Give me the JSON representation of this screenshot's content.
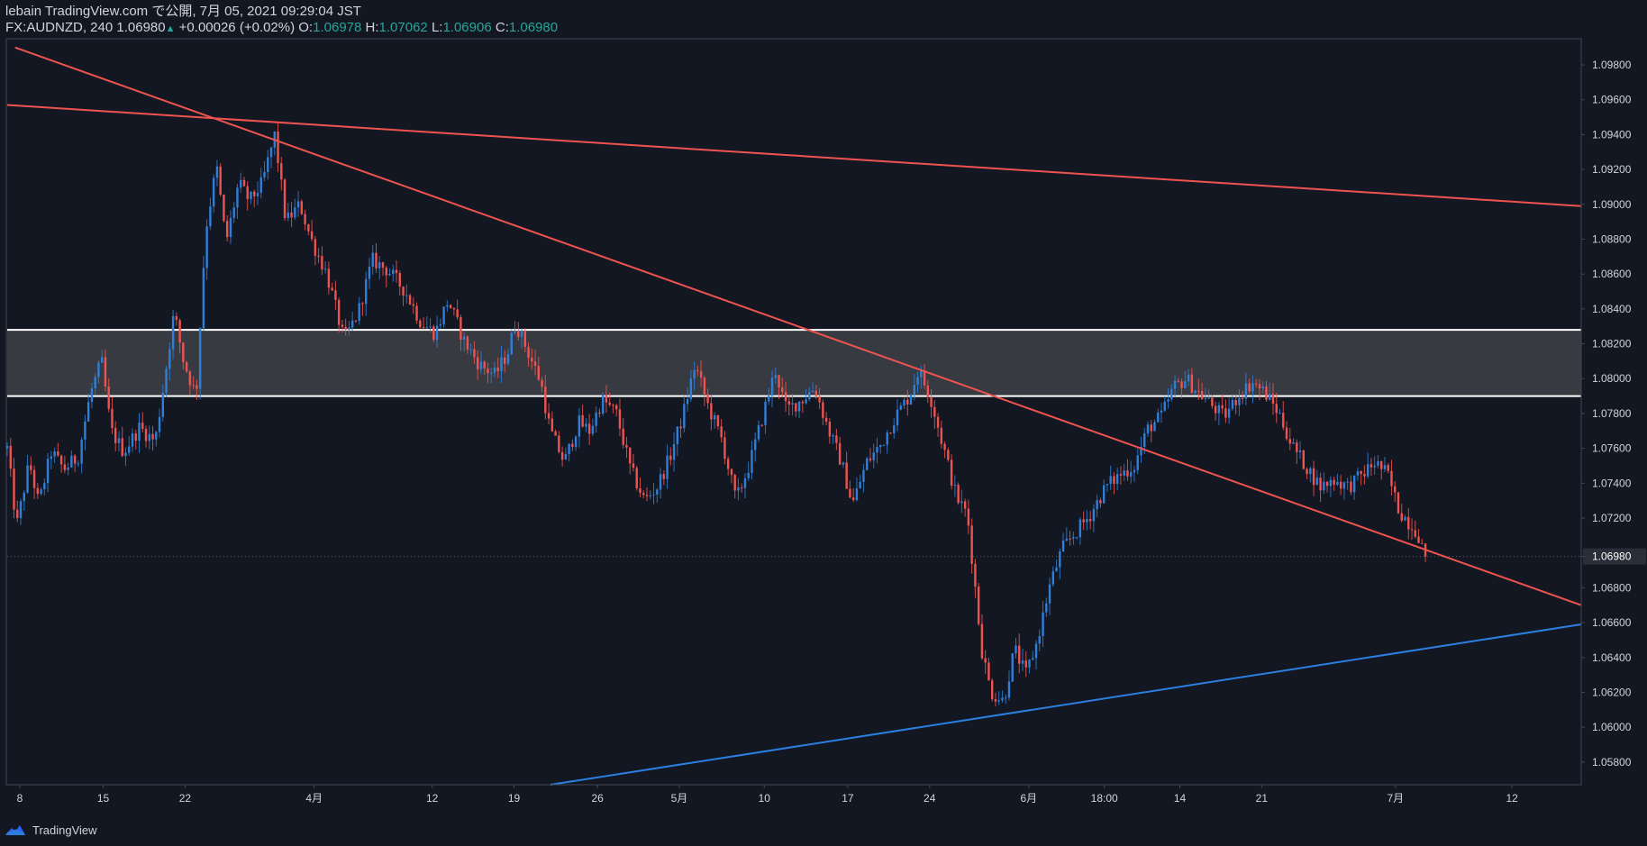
{
  "header": {
    "publish_line": "lebain TradingView.com で公開, 7月 05, 2021 09:29:04 JST",
    "symbol": "FX:AUDNZD, 240",
    "last": "1.06980",
    "change_arrow": "▲",
    "change": "+0.00026 (+0.02%)",
    "o_label": "O:",
    "o_value": "1.06978",
    "h_label": "H:",
    "h_value": "1.07062",
    "l_label": "L:",
    "l_value": "1.06906",
    "c_label": "C:",
    "c_value": "1.06980"
  },
  "footer": {
    "brand": "TradingView",
    "logo_icon": "tradingview-cloud-icon"
  },
  "colors": {
    "background": "#131722",
    "up": "#2f7fd8",
    "down": "#ef5350",
    "trend_red": "#ef5350",
    "trend_blue": "#2b7fe0",
    "zone_fill": "#3a3c44",
    "zone_line": "#ffffff",
    "grid_text": "#d1d4dc",
    "axis_line": "#434651",
    "value_text": "#26a69a"
  },
  "chart_data": {
    "type": "candlestick",
    "symbol": "FX:AUDNZD",
    "interval": "240",
    "y_range": [
      1.0567,
      1.0995
    ],
    "y_ticks": [
      "1.09800",
      "1.09600",
      "1.09400",
      "1.09200",
      "1.09000",
      "1.08800",
      "1.08600",
      "1.08400",
      "1.08200",
      "1.08000",
      "1.07800",
      "1.07600",
      "1.07400",
      "1.07200",
      "1.06980",
      "1.06800",
      "1.06600",
      "1.06400",
      "1.06200",
      "1.06000",
      "1.05800"
    ],
    "last_price_label": "1.06980",
    "last_price": 1.0698,
    "x_range_index": [
      0,
      100
    ],
    "x_ticks": [
      {
        "label": "8",
        "index": 0.8
      },
      {
        "label": "15",
        "index": 6.1
      },
      {
        "label": "22",
        "index": 11.3
      },
      {
        "label": "4月",
        "index": 19.5
      },
      {
        "label": "12",
        "index": 27.0
      },
      {
        "label": "19",
        "index": 32.2
      },
      {
        "label": "26",
        "index": 37.5
      },
      {
        "label": "5月",
        "index": 42.7
      },
      {
        "label": "10",
        "index": 48.1
      },
      {
        "label": "17",
        "index": 53.4
      },
      {
        "label": "24",
        "index": 58.6
      },
      {
        "label": "6月",
        "index": 64.9
      },
      {
        "label": "18:00",
        "index": 69.7
      },
      {
        "label": "14",
        "index": 74.5
      },
      {
        "label": "21",
        "index": 79.7
      },
      {
        "label": "7月",
        "index": 88.2
      },
      {
        "label": "12",
        "index": 95.6
      }
    ],
    "resistance_zone": {
      "top": 1.0828,
      "bottom": 1.079
    },
    "trendlines": [
      {
        "name": "descending-upper",
        "color": "red",
        "points": [
          [
            0,
            1.0957
          ],
          [
            100,
            1.0899
          ]
        ]
      },
      {
        "name": "descending-main",
        "color": "red",
        "points": [
          [
            0.5,
            1.099
          ],
          [
            100,
            1.067
          ]
        ]
      },
      {
        "name": "ascending-support",
        "color": "blue",
        "points": [
          [
            34.5,
            1.0567
          ],
          [
            100,
            1.0659
          ]
        ]
      }
    ],
    "price_path": [
      [
        0,
        1.076
      ],
      [
        0.6,
        1.0715
      ],
      [
        1.4,
        1.0752
      ],
      [
        2.0,
        1.0728
      ],
      [
        2.8,
        1.0758
      ],
      [
        3.6,
        1.0748
      ],
      [
        4.5,
        1.0755
      ],
      [
        5.3,
        1.0792
      ],
      [
        6.0,
        1.081
      ],
      [
        6.6,
        1.077
      ],
      [
        7.4,
        1.0758
      ],
      [
        8.4,
        1.0772
      ],
      [
        9.4,
        1.0764
      ],
      [
        10.0,
        1.08
      ],
      [
        10.6,
        1.0838
      ],
      [
        11.2,
        1.081
      ],
      [
        12.0,
        1.079
      ],
      [
        12.6,
        1.0885
      ],
      [
        13.3,
        1.0922
      ],
      [
        13.9,
        1.0878
      ],
      [
        14.7,
        1.0912
      ],
      [
        15.4,
        1.0902
      ],
      [
        16.2,
        1.0912
      ],
      [
        17.0,
        1.094
      ],
      [
        17.7,
        1.089
      ],
      [
        18.6,
        1.09
      ],
      [
        19.3,
        1.088
      ],
      [
        20.3,
        1.086
      ],
      [
        21.4,
        1.0822
      ],
      [
        22.3,
        1.0838
      ],
      [
        23.2,
        1.0868
      ],
      [
        24.2,
        1.0862
      ],
      [
        25.3,
        1.085
      ],
      [
        26.3,
        1.0832
      ],
      [
        27.2,
        1.0826
      ],
      [
        28.0,
        1.0845
      ],
      [
        29.0,
        1.0822
      ],
      [
        30.0,
        1.0808
      ],
      [
        31.0,
        1.0802
      ],
      [
        31.8,
        1.0815
      ],
      [
        32.3,
        1.0832
      ],
      [
        33.1,
        1.0815
      ],
      [
        33.9,
        1.0798
      ],
      [
        34.5,
        1.077
      ],
      [
        35.4,
        1.0752
      ],
      [
        36.3,
        1.0775
      ],
      [
        37.0,
        1.077
      ],
      [
        37.8,
        1.0788
      ],
      [
        38.7,
        1.078
      ],
      [
        39.6,
        1.0748
      ],
      [
        40.5,
        1.073
      ],
      [
        41.3,
        1.0738
      ],
      [
        42.1,
        1.0755
      ],
      [
        42.9,
        1.0778
      ],
      [
        43.7,
        1.0808
      ],
      [
        44.5,
        1.0785
      ],
      [
        45.4,
        1.0765
      ],
      [
        46.3,
        1.073
      ],
      [
        47.2,
        1.0752
      ],
      [
        48.1,
        1.0782
      ],
      [
        48.8,
        1.0805
      ],
      [
        49.5,
        1.0782
      ],
      [
        50.5,
        1.0788
      ],
      [
        51.3,
        1.0795
      ],
      [
        52.2,
        1.077
      ],
      [
        53.0,
        1.0752
      ],
      [
        53.7,
        1.0728
      ],
      [
        54.6,
        1.0752
      ],
      [
        55.5,
        1.0762
      ],
      [
        56.4,
        1.0778
      ],
      [
        57.3,
        1.079
      ],
      [
        57.9,
        1.0805
      ],
      [
        58.7,
        1.0788
      ],
      [
        59.5,
        1.076
      ],
      [
        60.3,
        1.0732
      ],
      [
        61.0,
        1.0722
      ],
      [
        61.5,
        1.068
      ],
      [
        61.9,
        1.0645
      ],
      [
        62.5,
        1.062
      ],
      [
        63.3,
        1.0615
      ],
      [
        64.0,
        1.0645
      ],
      [
        64.7,
        1.063
      ],
      [
        65.4,
        1.0648
      ],
      [
        66.2,
        1.068
      ],
      [
        67.0,
        1.0702
      ],
      [
        67.9,
        1.0712
      ],
      [
        68.8,
        1.0722
      ],
      [
        69.8,
        1.0738
      ],
      [
        70.7,
        1.0745
      ],
      [
        71.6,
        1.075
      ],
      [
        72.5,
        1.0772
      ],
      [
        73.3,
        1.0778
      ],
      [
        74.1,
        1.0795
      ],
      [
        74.9,
        1.08
      ],
      [
        75.7,
        1.0792
      ],
      [
        76.5,
        1.0785
      ],
      [
        77.3,
        1.0778
      ],
      [
        78.2,
        1.079
      ],
      [
        79.1,
        1.0798
      ],
      [
        79.9,
        1.0792
      ],
      [
        80.8,
        1.078
      ],
      [
        81.6,
        1.0762
      ],
      [
        82.5,
        1.075
      ],
      [
        83.4,
        1.0738
      ],
      [
        84.3,
        1.0742
      ],
      [
        85.2,
        1.0738
      ],
      [
        86.1,
        1.0745
      ],
      [
        86.9,
        1.0752
      ],
      [
        87.7,
        1.0745
      ],
      [
        88.4,
        1.0725
      ],
      [
        89.0,
        1.0718
      ],
      [
        89.6,
        1.0712
      ],
      [
        90.1,
        1.0698
      ]
    ]
  }
}
